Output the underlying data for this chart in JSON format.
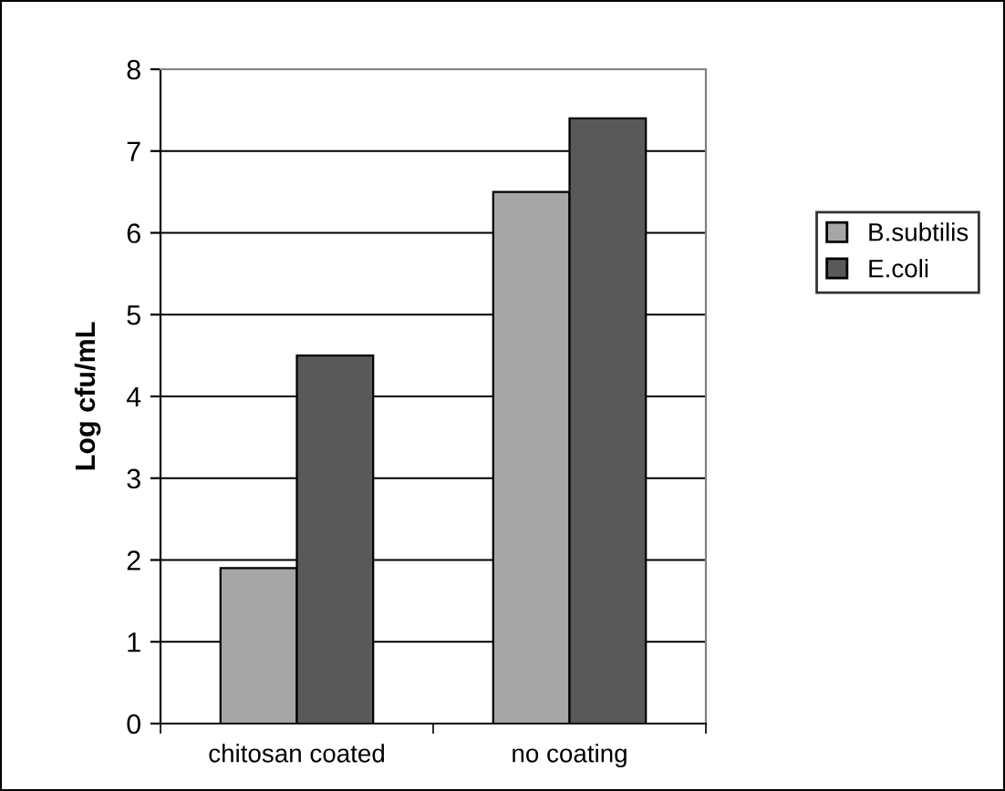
{
  "chart_data": {
    "type": "bar",
    "ylabel": "Log cfu/mL",
    "categories": [
      "chitosan coated",
      "no coating"
    ],
    "series": [
      {
        "name": "B.subtilis",
        "color": "#a6a6a6",
        "values": [
          1.9,
          6.5
        ]
      },
      {
        "name": "E.coli",
        "color": "#595959",
        "values": [
          4.5,
          7.4
        ]
      }
    ],
    "ylim": [
      0,
      8
    ],
    "yticks": [
      0,
      1,
      2,
      3,
      4,
      5,
      6,
      7,
      8
    ],
    "grid": "y",
    "legend": "right"
  }
}
